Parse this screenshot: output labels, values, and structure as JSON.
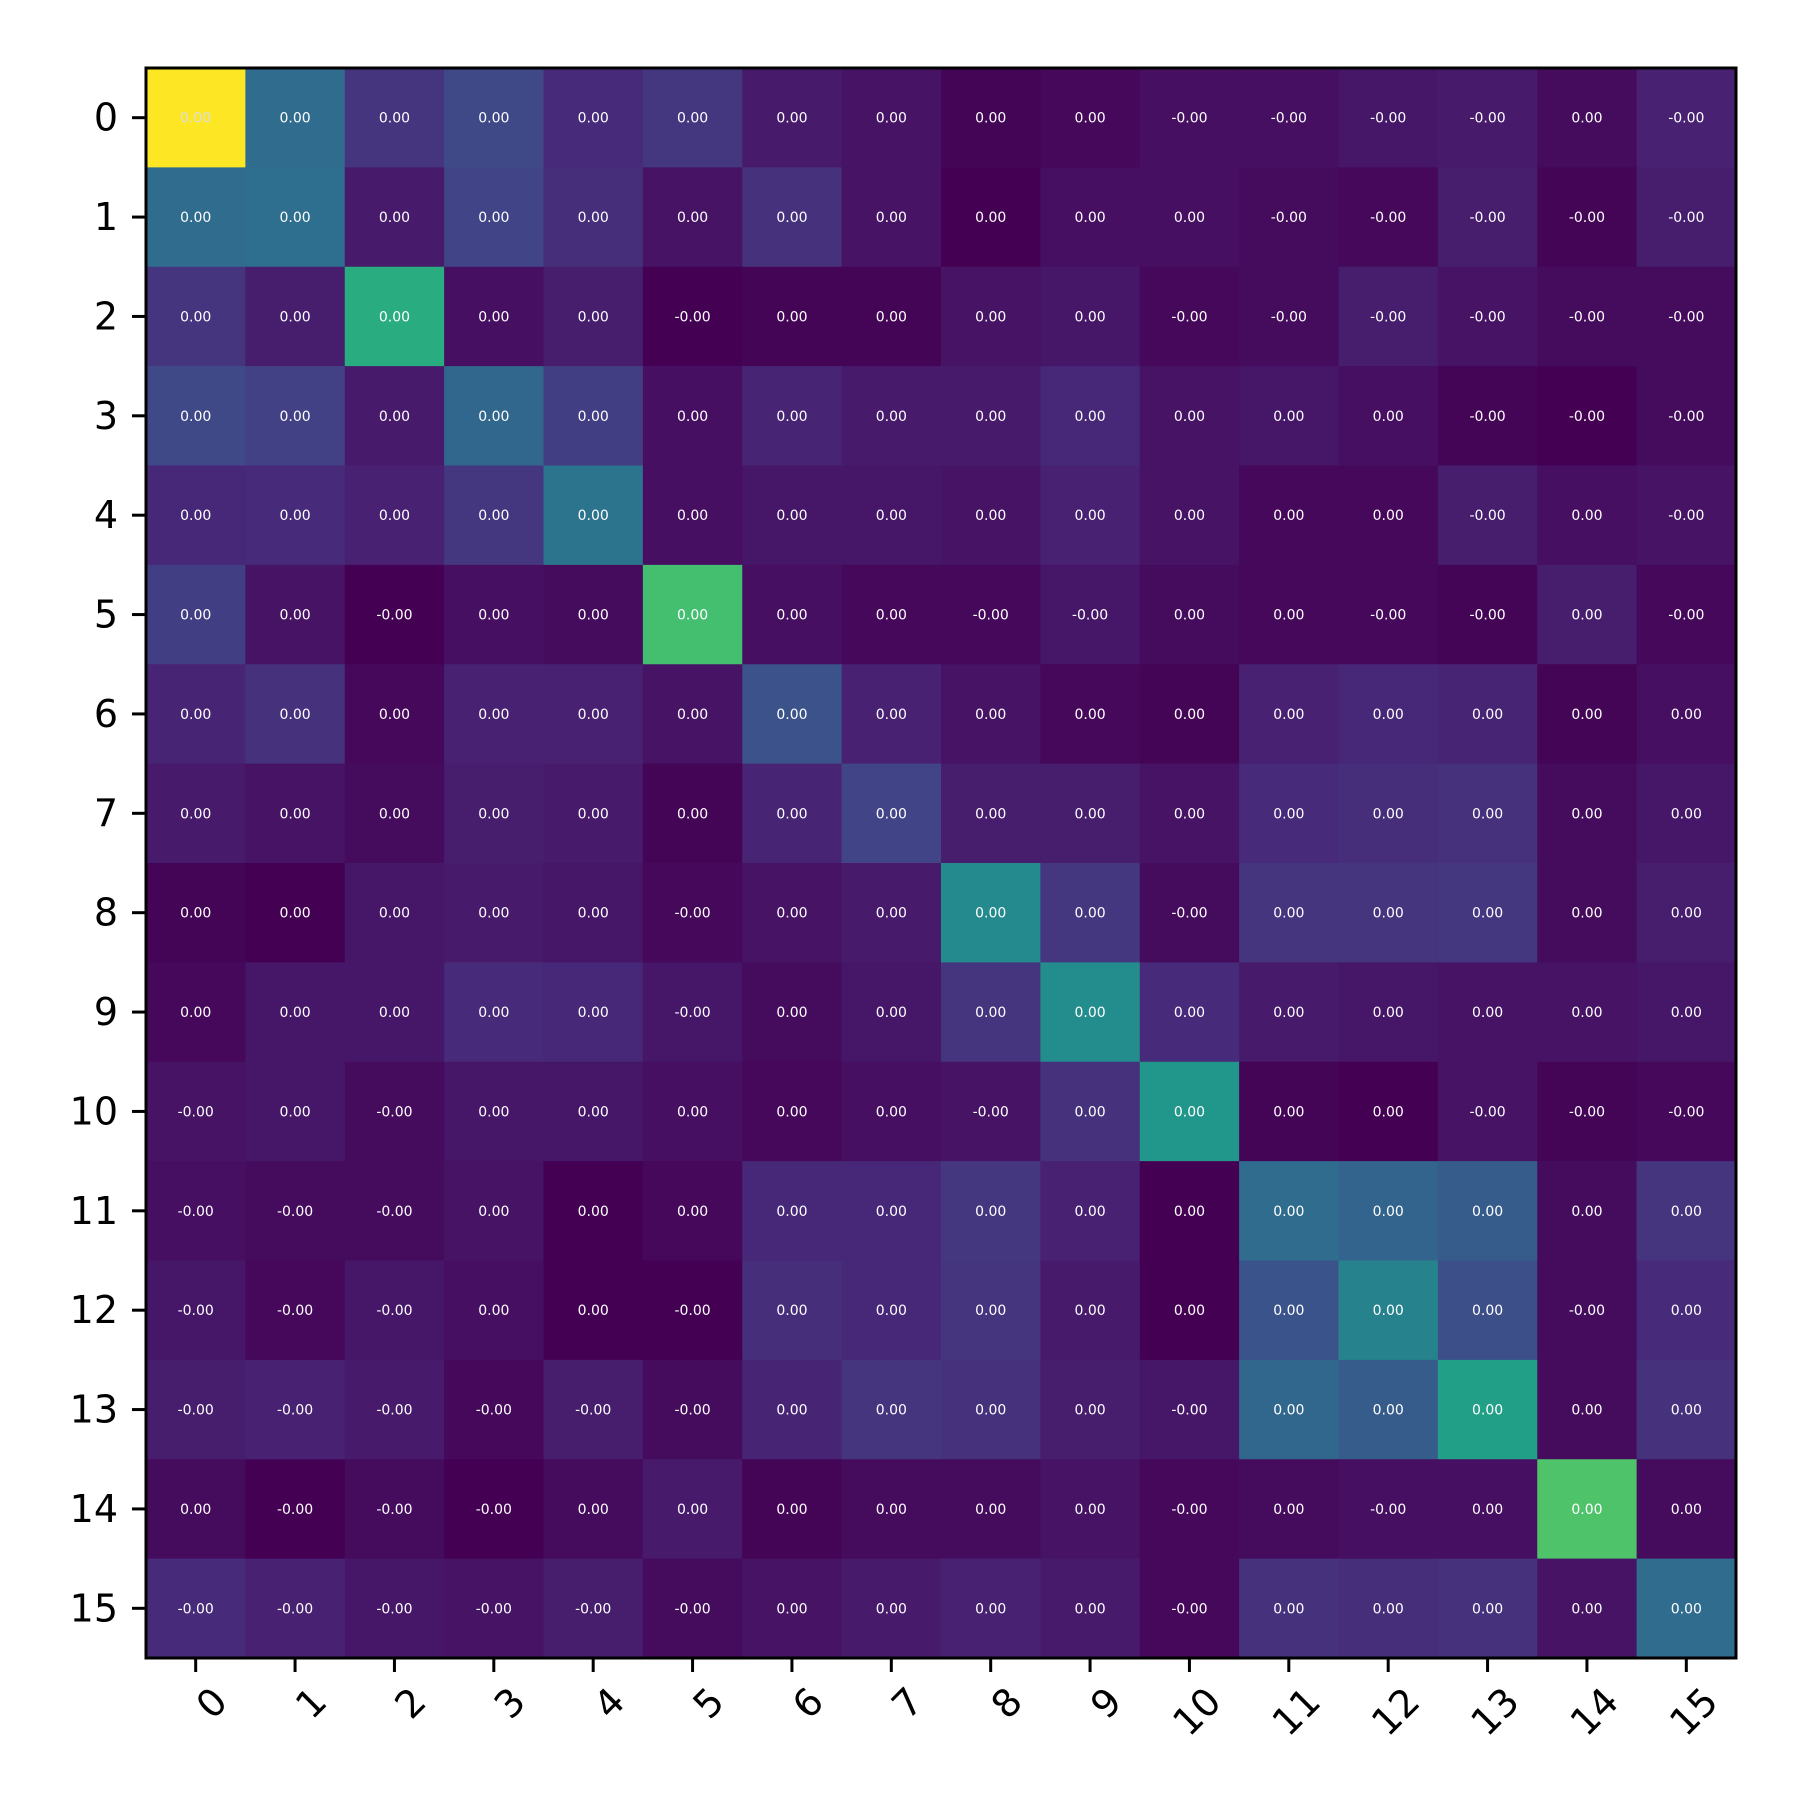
{
  "chart_data": {
    "type": "heatmap",
    "colormap": "viridis",
    "title": "",
    "xlabel": "",
    "ylabel": "",
    "x_tick_labels": [
      "0",
      "1",
      "2",
      "3",
      "4",
      "5",
      "6",
      "7",
      "8",
      "9",
      "10",
      "11",
      "12",
      "13",
      "14",
      "15"
    ],
    "y_tick_labels": [
      "0",
      "1",
      "2",
      "3",
      "4",
      "5",
      "6",
      "7",
      "8",
      "9",
      "10",
      "11",
      "12",
      "13",
      "14",
      "15"
    ],
    "x_tick_rotation_deg": 45,
    "cell_labels": [
      [
        "0.00",
        "0.00",
        "0.00",
        "0.00",
        "0.00",
        "0.00",
        "0.00",
        "0.00",
        "0.00",
        "0.00",
        "-0.00",
        "-0.00",
        "-0.00",
        "-0.00",
        "0.00",
        "-0.00"
      ],
      [
        "0.00",
        "0.00",
        "0.00",
        "0.00",
        "0.00",
        "0.00",
        "0.00",
        "0.00",
        "0.00",
        "0.00",
        "0.00",
        "-0.00",
        "-0.00",
        "-0.00",
        "-0.00",
        "-0.00"
      ],
      [
        "0.00",
        "0.00",
        "0.00",
        "0.00",
        "0.00",
        "-0.00",
        "0.00",
        "0.00",
        "0.00",
        "0.00",
        "-0.00",
        "-0.00",
        "-0.00",
        "-0.00",
        "-0.00",
        "-0.00"
      ],
      [
        "0.00",
        "0.00",
        "0.00",
        "0.00",
        "0.00",
        "0.00",
        "0.00",
        "0.00",
        "0.00",
        "0.00",
        "0.00",
        "0.00",
        "0.00",
        "-0.00",
        "-0.00",
        "-0.00"
      ],
      [
        "0.00",
        "0.00",
        "0.00",
        "0.00",
        "0.00",
        "0.00",
        "0.00",
        "0.00",
        "0.00",
        "0.00",
        "0.00",
        "0.00",
        "0.00",
        "-0.00",
        "0.00",
        "-0.00"
      ],
      [
        "0.00",
        "0.00",
        "-0.00",
        "0.00",
        "0.00",
        "0.00",
        "0.00",
        "0.00",
        "-0.00",
        "-0.00",
        "0.00",
        "0.00",
        "-0.00",
        "-0.00",
        "0.00",
        "-0.00"
      ],
      [
        "0.00",
        "0.00",
        "0.00",
        "0.00",
        "0.00",
        "0.00",
        "0.00",
        "0.00",
        "0.00",
        "0.00",
        "0.00",
        "0.00",
        "0.00",
        "0.00",
        "0.00",
        "0.00"
      ],
      [
        "0.00",
        "0.00",
        "0.00",
        "0.00",
        "0.00",
        "0.00",
        "0.00",
        "0.00",
        "0.00",
        "0.00",
        "0.00",
        "0.00",
        "0.00",
        "0.00",
        "0.00",
        "0.00"
      ],
      [
        "0.00",
        "0.00",
        "0.00",
        "0.00",
        "0.00",
        "-0.00",
        "0.00",
        "0.00",
        "0.00",
        "0.00",
        "-0.00",
        "0.00",
        "0.00",
        "0.00",
        "0.00",
        "0.00"
      ],
      [
        "0.00",
        "0.00",
        "0.00",
        "0.00",
        "0.00",
        "-0.00",
        "0.00",
        "0.00",
        "0.00",
        "0.00",
        "0.00",
        "0.00",
        "0.00",
        "0.00",
        "0.00",
        "0.00"
      ],
      [
        "-0.00",
        "0.00",
        "-0.00",
        "0.00",
        "0.00",
        "0.00",
        "0.00",
        "0.00",
        "-0.00",
        "0.00",
        "0.00",
        "0.00",
        "0.00",
        "-0.00",
        "-0.00",
        "-0.00"
      ],
      [
        "-0.00",
        "-0.00",
        "-0.00",
        "0.00",
        "0.00",
        "0.00",
        "0.00",
        "0.00",
        "0.00",
        "0.00",
        "0.00",
        "0.00",
        "0.00",
        "0.00",
        "0.00",
        "0.00"
      ],
      [
        "-0.00",
        "-0.00",
        "-0.00",
        "0.00",
        "0.00",
        "-0.00",
        "0.00",
        "0.00",
        "0.00",
        "0.00",
        "0.00",
        "0.00",
        "0.00",
        "0.00",
        "-0.00",
        "0.00"
      ],
      [
        "-0.00",
        "-0.00",
        "-0.00",
        "-0.00",
        "-0.00",
        "-0.00",
        "0.00",
        "0.00",
        "0.00",
        "0.00",
        "-0.00",
        "0.00",
        "0.00",
        "0.00",
        "0.00",
        "0.00"
      ],
      [
        "0.00",
        "-0.00",
        "-0.00",
        "-0.00",
        "0.00",
        "0.00",
        "0.00",
        "0.00",
        "0.00",
        "0.00",
        "-0.00",
        "0.00",
        "-0.00",
        "0.00",
        "0.00",
        "0.00"
      ],
      [
        "-0.00",
        "-0.00",
        "-0.00",
        "-0.00",
        "-0.00",
        "-0.00",
        "0.00",
        "0.00",
        "0.00",
        "0.00",
        "-0.00",
        "0.00",
        "0.00",
        "0.00",
        "0.00",
        "0.00"
      ]
    ],
    "relative_intensity": [
      [
        1.0,
        0.35,
        0.15,
        0.22,
        0.12,
        0.16,
        0.07,
        0.05,
        0.01,
        0.02,
        0.04,
        0.04,
        0.06,
        0.07,
        0.03,
        0.09
      ],
      [
        0.35,
        0.36,
        0.07,
        0.2,
        0.13,
        0.05,
        0.14,
        0.05,
        0.0,
        0.04,
        0.04,
        0.03,
        0.02,
        0.08,
        0.01,
        0.08
      ],
      [
        0.15,
        0.08,
        0.62,
        0.04,
        0.08,
        0.0,
        0.01,
        0.01,
        0.05,
        0.06,
        0.02,
        0.03,
        0.08,
        0.05,
        0.03,
        0.03
      ],
      [
        0.22,
        0.19,
        0.07,
        0.33,
        0.18,
        0.04,
        0.1,
        0.07,
        0.07,
        0.11,
        0.05,
        0.06,
        0.04,
        0.01,
        0.0,
        0.03
      ],
      [
        0.11,
        0.12,
        0.09,
        0.16,
        0.38,
        0.04,
        0.06,
        0.06,
        0.05,
        0.09,
        0.05,
        0.02,
        0.02,
        0.08,
        0.04,
        0.05
      ],
      [
        0.18,
        0.05,
        0.0,
        0.04,
        0.03,
        0.7,
        0.04,
        0.02,
        0.02,
        0.06,
        0.03,
        0.02,
        0.02,
        0.01,
        0.08,
        0.02
      ],
      [
        0.1,
        0.14,
        0.02,
        0.09,
        0.09,
        0.05,
        0.25,
        0.09,
        0.05,
        0.02,
        0.01,
        0.09,
        0.11,
        0.1,
        0.01,
        0.04
      ],
      [
        0.07,
        0.05,
        0.03,
        0.08,
        0.07,
        0.01,
        0.1,
        0.2,
        0.08,
        0.08,
        0.05,
        0.12,
        0.13,
        0.14,
        0.03,
        0.06
      ],
      [
        0.01,
        0.0,
        0.06,
        0.07,
        0.06,
        0.02,
        0.05,
        0.07,
        0.47,
        0.16,
        0.03,
        0.15,
        0.15,
        0.16,
        0.03,
        0.08
      ],
      [
        0.02,
        0.06,
        0.06,
        0.12,
        0.11,
        0.06,
        0.03,
        0.06,
        0.15,
        0.48,
        0.12,
        0.07,
        0.06,
        0.05,
        0.05,
        0.06
      ],
      [
        0.05,
        0.06,
        0.03,
        0.06,
        0.06,
        0.04,
        0.02,
        0.04,
        0.05,
        0.14,
        0.52,
        0.01,
        0.0,
        0.05,
        0.01,
        0.02
      ],
      [
        0.04,
        0.03,
        0.03,
        0.05,
        0.0,
        0.02,
        0.11,
        0.11,
        0.16,
        0.09,
        0.0,
        0.35,
        0.32,
        0.29,
        0.03,
        0.15
      ],
      [
        0.06,
        0.02,
        0.06,
        0.04,
        0.0,
        0.0,
        0.13,
        0.11,
        0.15,
        0.07,
        0.0,
        0.26,
        0.44,
        0.24,
        0.03,
        0.12
      ],
      [
        0.08,
        0.09,
        0.07,
        0.02,
        0.08,
        0.03,
        0.1,
        0.15,
        0.14,
        0.08,
        0.06,
        0.33,
        0.29,
        0.56,
        0.03,
        0.14
      ],
      [
        0.03,
        0.0,
        0.03,
        0.0,
        0.03,
        0.07,
        0.01,
        0.03,
        0.03,
        0.05,
        0.02,
        0.03,
        0.04,
        0.04,
        0.72,
        0.03
      ],
      [
        0.12,
        0.09,
        0.06,
        0.05,
        0.08,
        0.03,
        0.05,
        0.07,
        0.09,
        0.07,
        0.02,
        0.14,
        0.13,
        0.14,
        0.05,
        0.35
      ]
    ]
  }
}
